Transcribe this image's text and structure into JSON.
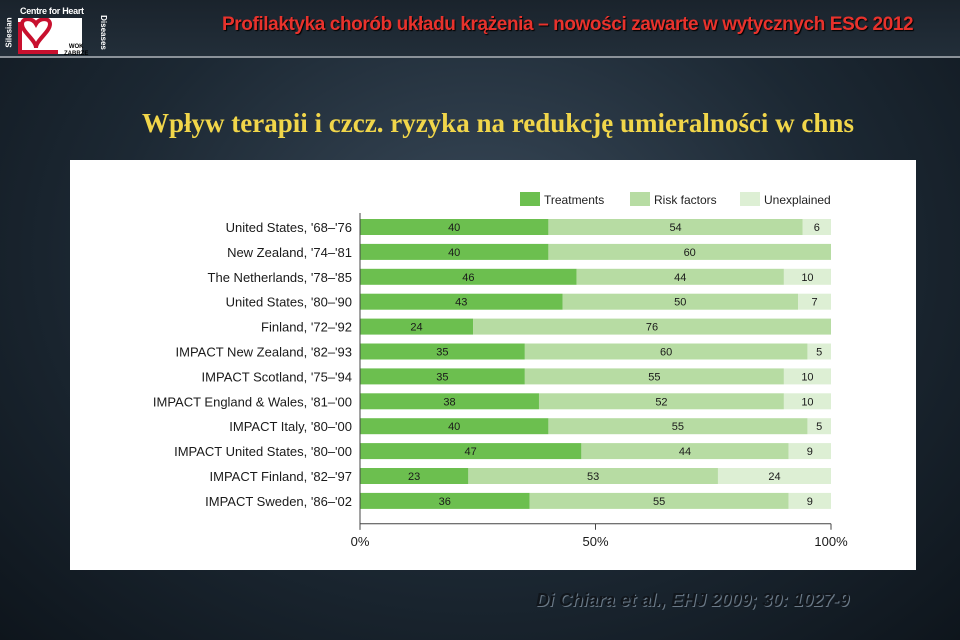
{
  "logo": {
    "top_text": "Centre for Heart",
    "left_text": "Silesian",
    "right_text": "Diseases",
    "wok_text": "WOK",
    "city_text": "ZABRZE"
  },
  "header": {
    "title": "Profilaktyka chorób układu krążenia – nowości zawarte w wytycznych ESC 2012"
  },
  "slide_title": "Wpływ terapii i czcz. ryzyka na redukcję umieralności w chns",
  "citation": "Di Chiara et al., EHJ 2009; 30: 1027-9",
  "colors": {
    "title_red": "#e8322c",
    "title_yellow": "#f1d64a",
    "treatments": "#6cbf4f",
    "risk_factors": "#b7dca3",
    "unexplained": "#ddefd4",
    "background": "#1c2833"
  },
  "chart_data": {
    "type": "bar",
    "orientation": "horizontal",
    "stacked": true,
    "categories": [
      "United States, '68–'76",
      "New Zealand, '74–'81",
      "The Netherlands, '78–'85",
      "United States, '80–'90",
      "Finland, '72–'92",
      "IMPACT New Zealand, '82–'93",
      "IMPACT Scotland, '75–'94",
      "IMPACT England & Wales, '81–'00",
      "IMPACT Italy, '80–'00",
      "IMPACT United States, '80–'00",
      "IMPACT Finland, '82–'97",
      "IMPACT Sweden, '86–'02"
    ],
    "series": [
      {
        "name": "Treatments",
        "values": [
          40,
          40,
          46,
          43,
          24,
          35,
          35,
          38,
          40,
          47,
          23,
          36
        ]
      },
      {
        "name": "Risk factors",
        "values": [
          54,
          60,
          44,
          50,
          76,
          60,
          55,
          52,
          55,
          44,
          53,
          55
        ]
      },
      {
        "name": "Unexplained",
        "values": [
          6,
          0,
          10,
          7,
          0,
          5,
          10,
          10,
          5,
          9,
          24,
          9
        ]
      }
    ],
    "x_ticks": [
      "0%",
      "50%",
      "100%"
    ],
    "xlim": [
      0,
      100
    ],
    "legend_position": "top-right",
    "grid": false
  }
}
